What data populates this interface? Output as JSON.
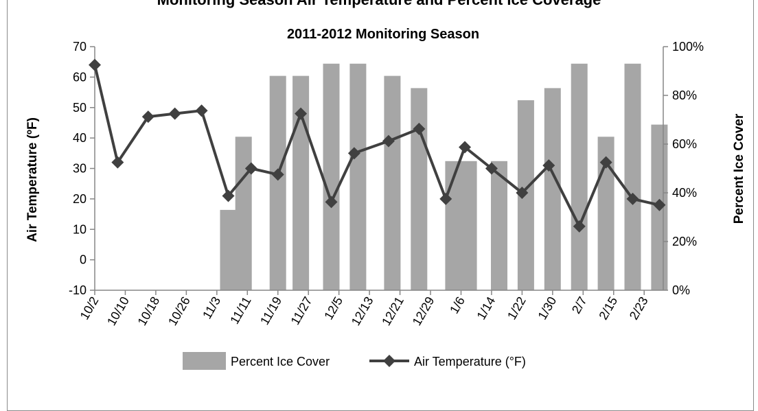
{
  "page": {
    "top_title": "Monitoring Season Air Temperature and Percent Ice Coverage"
  },
  "chart_data": {
    "type": "bar",
    "title": "2011-2012 Monitoring Season",
    "ylabel": "Air Temperature (ºF)",
    "ylabel2": "Percent Ice Cover",
    "ylim": [
      -10,
      70
    ],
    "y2lim": [
      0,
      100
    ],
    "yticks": [
      -10,
      0,
      10,
      20,
      30,
      40,
      50,
      60,
      70
    ],
    "y2ticks": [
      "0%",
      "20%",
      "40%",
      "60%",
      "80%",
      "100%"
    ],
    "xticks": [
      "10/2",
      "10/10",
      "10/18",
      "10/26",
      "11/3",
      "11/11",
      "11/19",
      "11/27",
      "12/5",
      "12/13",
      "12/21",
      "12/29",
      "1/6",
      "1/14",
      "1/22",
      "1/30",
      "2/7",
      "2/15",
      "2/23"
    ],
    "x_start": "10/2",
    "x_end": "2/28",
    "grid": false,
    "legend_position": "bottom",
    "series": [
      {
        "name": "Percent Ice Cover",
        "kind": "bar",
        "axis": "right",
        "color": "#a6a6a6",
        "x": [
          "11/6",
          "11/10",
          "11/19",
          "11/25",
          "12/3",
          "12/10",
          "12/19",
          "12/26",
          "1/4",
          "1/8",
          "1/16",
          "1/23",
          "1/30",
          "2/6",
          "2/13",
          "2/20",
          "2/27"
        ],
        "values": [
          33,
          63,
          88,
          88,
          93,
          93,
          88,
          83,
          53,
          53,
          53,
          78,
          83,
          93,
          63,
          93,
          68
        ]
      },
      {
        "name": "Air Temperature (°F)",
        "kind": "line",
        "axis": "left",
        "color": "#404040",
        "marker": "diamond",
        "x": [
          "10/2",
          "10/8",
          "10/16",
          "10/23",
          "10/30",
          "11/6",
          "11/12",
          "11/19",
          "11/25",
          "12/3",
          "12/9",
          "12/18",
          "12/26",
          "1/2",
          "1/7",
          "1/14",
          "1/22",
          "1/29",
          "2/6",
          "2/13",
          "2/20",
          "2/27"
        ],
        "values": [
          64,
          32,
          47,
          48,
          49,
          21,
          30,
          28,
          48,
          19,
          35,
          39,
          43,
          20,
          37,
          30,
          22,
          31,
          11,
          32,
          20,
          18
        ]
      }
    ]
  }
}
